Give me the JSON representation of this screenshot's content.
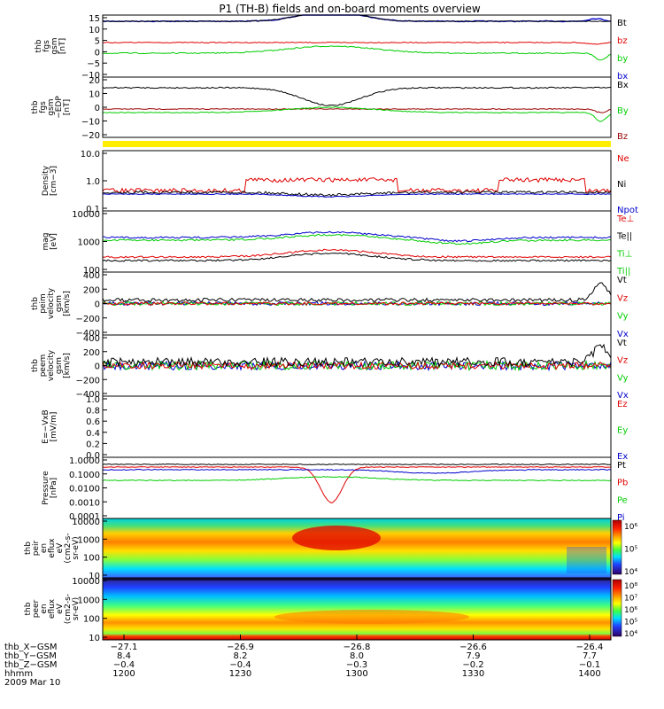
{
  "title": "P1 (TH-B) fields and on-board moments overview",
  "colors": {
    "black": "#000000",
    "red": "#e00000",
    "green": "#00cc00",
    "blue": "#0000cc",
    "darkred": "#990000",
    "yellow": "#ffee00"
  },
  "chart_data": [
    {
      "id": "fgs",
      "type": "line",
      "ylabel": [
        "thb",
        "fgs",
        "gsm",
        "[nT]"
      ],
      "yticks": [
        "15",
        "10",
        "5",
        "0",
        "−5",
        "−10"
      ],
      "ylim": [
        -13,
        16
      ],
      "series": [
        {
          "name": "Bt",
          "color": "#000000"
        },
        {
          "name": "bz",
          "color": "#e00000"
        },
        {
          "name": "by",
          "color": "#00cc00"
        },
        {
          "name": "bx",
          "color": "#0000cc"
        }
      ]
    },
    {
      "id": "fgs_edp",
      "type": "line",
      "ylabel": [
        "thb",
        "fgs",
        "gsm",
        "−EDP",
        "[nT]"
      ],
      "yticks": [
        "20",
        "10",
        "0",
        "−10",
        "−20"
      ],
      "ylim": [
        -28,
        22
      ],
      "series": [
        {
          "name": "Bx",
          "color": "#000000"
        },
        {
          "name": "By",
          "color": "#00cc00"
        },
        {
          "name": "Bz",
          "color": "#990000"
        }
      ]
    },
    {
      "id": "density",
      "type": "line",
      "ylabel": [
        "Density",
        "[cm−3]"
      ],
      "yticks": [
        "10.0",
        "1.0",
        "0.1"
      ],
      "log": true,
      "series": [
        {
          "name": "Ne",
          "color": "#e00000"
        },
        {
          "name": "Ni",
          "color": "#000000"
        },
        {
          "name": "Npot",
          "color": "#0000cc"
        }
      ]
    },
    {
      "id": "temperature",
      "type": "line",
      "ylabel": [
        "mag",
        "[eV]"
      ],
      "yticks": [
        "10000",
        "1000",
        "100"
      ],
      "log": true,
      "series": [
        {
          "name": "Te⊥",
          "color": "#e00000"
        },
        {
          "name": "Te||",
          "color": "#000000"
        },
        {
          "name": "Ti⊥",
          "color": "#00cc00"
        },
        {
          "name": "Ti||",
          "color": "#00cc00"
        }
      ]
    },
    {
      "id": "ion_velocity",
      "type": "line",
      "ylabel": [
        "thb",
        "peim",
        "velocity",
        "gsm",
        "[km/s]"
      ],
      "yticks": [
        "400",
        "200",
        "0",
        "−200",
        "−400"
      ],
      "ylim": [
        -400,
        400
      ],
      "series": [
        {
          "name": "Vt",
          "color": "#000000"
        },
        {
          "name": "Vz",
          "color": "#e00000"
        },
        {
          "name": "Vy",
          "color": "#00cc00"
        },
        {
          "name": "Vx",
          "color": "#0000cc"
        }
      ]
    },
    {
      "id": "electron_velocity",
      "type": "line",
      "ylabel": [
        "thb",
        "peem",
        "velocity",
        "gsm",
        "[km/s]"
      ],
      "yticks": [
        "400",
        "200",
        "0",
        "−200",
        "−400"
      ],
      "ylim": [
        -400,
        400
      ],
      "series": [
        {
          "name": "Vt",
          "color": "#000000"
        },
        {
          "name": "Vz",
          "color": "#e00000"
        },
        {
          "name": "Vy",
          "color": "#00cc00"
        },
        {
          "name": "Vx",
          "color": "#0000cc"
        }
      ]
    },
    {
      "id": "efield",
      "type": "line",
      "ylabel": [
        "E=−VxB",
        "[mV/m]"
      ],
      "yticks": [
        "1.0",
        "0.8",
        "0.6",
        "0.4",
        "0.2",
        "0.0"
      ],
      "ylim": [
        0,
        1
      ],
      "series": [
        {
          "name": "Ez",
          "color": "#e00000"
        },
        {
          "name": "Ey",
          "color": "#00cc00"
        },
        {
          "name": "Ex",
          "color": "#0000cc"
        }
      ]
    },
    {
      "id": "pressure",
      "type": "line",
      "ylabel": [
        "Pressure",
        "[nPa]"
      ],
      "yticks": [
        "1.0000",
        "0.1000",
        "0.0100",
        "0.0010",
        "0.0001"
      ],
      "log": true,
      "series": [
        {
          "name": "Pt",
          "color": "#000000"
        },
        {
          "name": "Pb",
          "color": "#e00000"
        },
        {
          "name": "Pe",
          "color": "#00cc00"
        },
        {
          "name": "Pi",
          "color": "#0000cc"
        }
      ]
    },
    {
      "id": "ion_spec",
      "type": "heatmap",
      "ylabel": [
        "thb",
        "peir",
        "en",
        "eflux",
        "eV",
        "(cm2-s-",
        "sr-eV)"
      ],
      "yticks": [
        "10000",
        "1000",
        "100",
        "10"
      ],
      "colorbar": [
        "10⁶",
        "10⁵",
        "10⁴"
      ]
    },
    {
      "id": "electron_spec",
      "type": "heatmap",
      "ylabel": [
        "thb",
        "peer",
        "en",
        "eflux",
        "eV",
        "(cm2-s-",
        "sr-eV)"
      ],
      "yticks": [
        "10000",
        "1000",
        "100",
        "10"
      ],
      "colorbar": [
        "10⁸",
        "10⁷",
        "10⁶",
        "10⁵",
        "10⁴"
      ]
    }
  ],
  "xaxis": {
    "row_labels": [
      "thb_X−GSM",
      "thb_Y−GSM",
      "thb_Z−GSM",
      "hhmm",
      "2009 Mar 10"
    ],
    "columns": [
      [
        "−27.1",
        "8.4",
        "−0.4",
        "1200"
      ],
      [
        "−26.9",
        "8.2",
        "−0.4",
        "1230"
      ],
      [
        "−26.8",
        "8.0",
        "−0.3",
        "1300"
      ],
      [
        "−26.6",
        "7.9",
        "−0.2",
        "1330"
      ],
      [
        "−26.4",
        "7.7",
        "−0.1",
        "1400"
      ]
    ]
  }
}
